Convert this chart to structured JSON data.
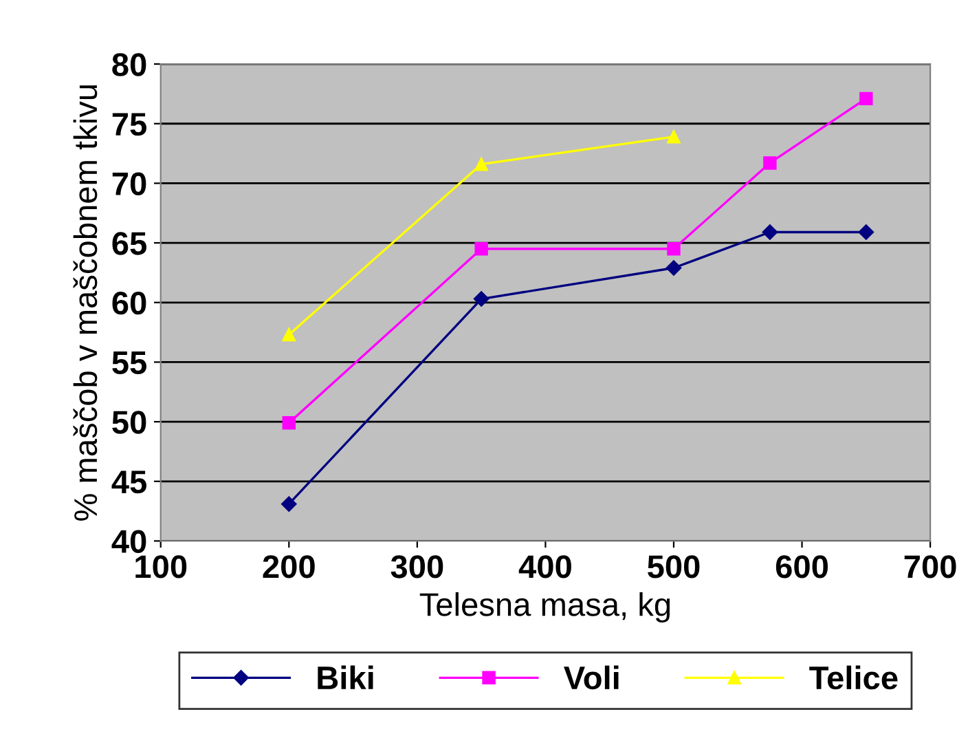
{
  "chart_data": {
    "type": "line",
    "xlabel": "Telesna masa, kg",
    "ylabel": "% maščob v maščobnem tkivu",
    "xlim": [
      100,
      700
    ],
    "xticks": [
      100,
      200,
      300,
      400,
      500,
      600,
      700
    ],
    "ylim": [
      40,
      80
    ],
    "yticks": [
      40,
      45,
      50,
      55,
      60,
      65,
      70,
      75,
      80
    ],
    "grid": "y",
    "legend": "bottom",
    "line_style": "solid",
    "series": [
      {
        "name": "Biki",
        "color": "#000080",
        "marker": "diamond",
        "x": [
          200,
          350,
          500,
          575,
          650
        ],
        "values": [
          43.1,
          60.3,
          62.9,
          65.9,
          65.9
        ]
      },
      {
        "name": "Voli",
        "color": "#ff00ff",
        "marker": "square",
        "x": [
          200,
          350,
          500,
          575,
          650
        ],
        "values": [
          49.9,
          64.5,
          64.5,
          71.7,
          77.1
        ]
      },
      {
        "name": "Telice",
        "color": "#ffff00",
        "marker": "triangle",
        "x": [
          200,
          350,
          500
        ],
        "values": [
          57.3,
          71.6,
          73.9
        ]
      }
    ]
  }
}
